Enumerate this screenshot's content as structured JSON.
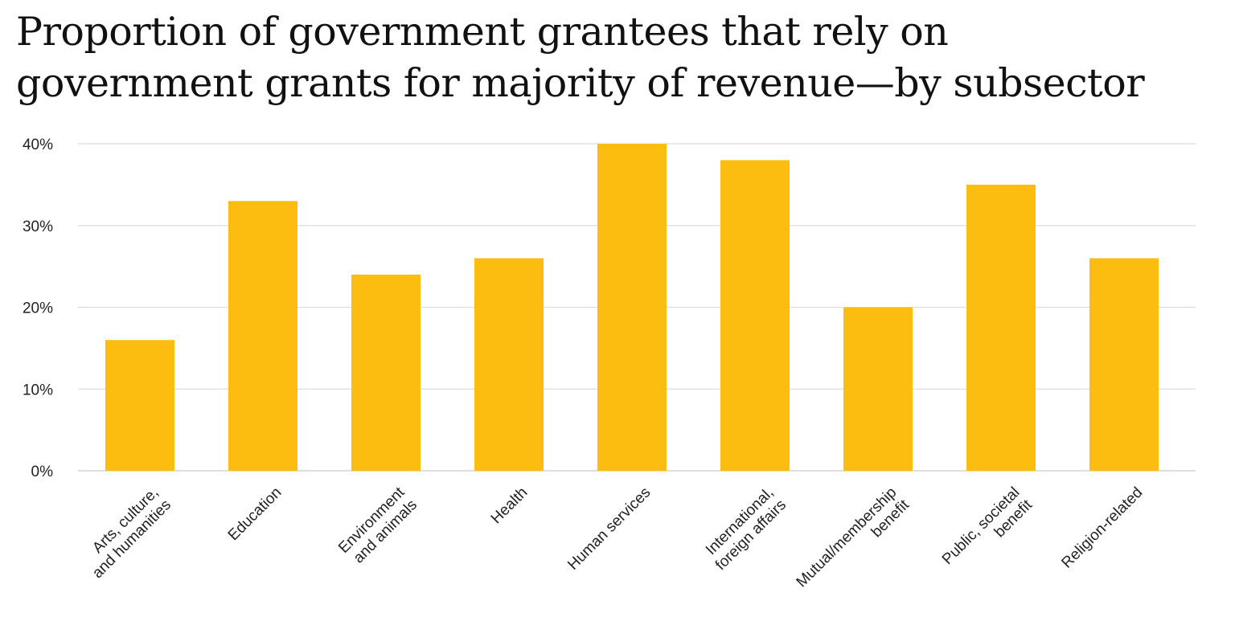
{
  "chart_data": {
    "type": "bar",
    "title_lines": [
      "Proportion of government grantees that rely on",
      "government grants for majority of revenue—by subsector"
    ],
    "categories": [
      [
        "Arts, culture,",
        "and humanities"
      ],
      [
        "Education"
      ],
      [
        "Environment",
        "and animals"
      ],
      [
        "Health"
      ],
      [
        "Human services"
      ],
      [
        "International,",
        "foreign affairs"
      ],
      [
        "Mutual/membership",
        "benefit"
      ],
      [
        "Public, societal",
        "benefit"
      ],
      [
        "Religion-related"
      ]
    ],
    "values": [
      16,
      33,
      24,
      26,
      40,
      38,
      20,
      35,
      26
    ],
    "ylim": [
      0,
      40
    ],
    "yticks": [
      0,
      10,
      20,
      30,
      40
    ],
    "ytick_labels": [
      "0%",
      "10%",
      "20%",
      "30%",
      "40%"
    ],
    "grid": true,
    "bar_color": "#FDBD10",
    "grid_color": "#dddddd"
  }
}
